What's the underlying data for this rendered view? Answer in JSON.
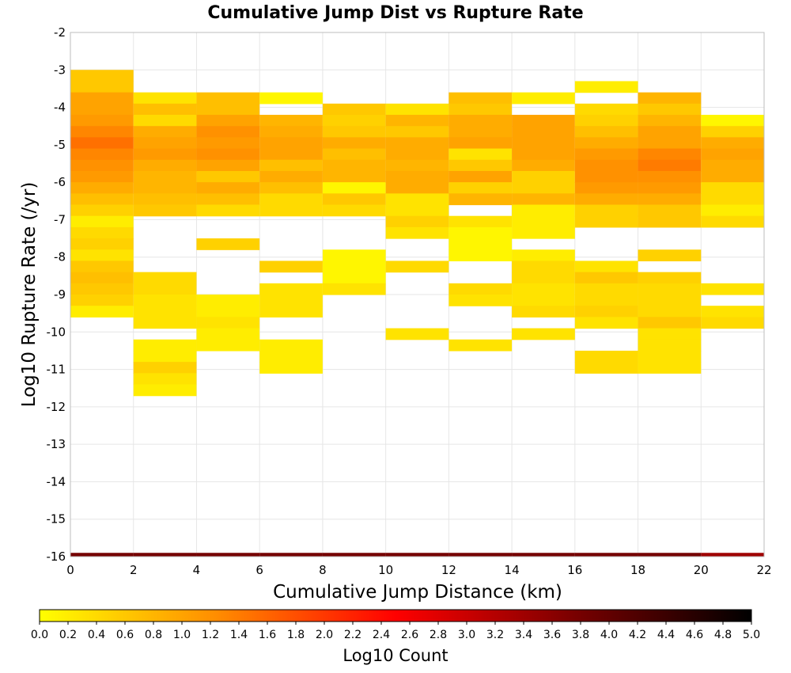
{
  "chart_data": {
    "type": "heatmap",
    "title": "Cumulative Jump Dist vs Rupture Rate",
    "xlabel": "Cumulative Jump Distance (km)",
    "ylabel": "Log10 Rupture Rate (/yr)",
    "xlim": [
      0,
      22
    ],
    "ylim": [
      -16,
      -2
    ],
    "x_ticks": [
      "0",
      "2",
      "4",
      "6",
      "8",
      "10",
      "12",
      "14",
      "16",
      "18",
      "20",
      "22"
    ],
    "y_ticks": [
      "-2",
      "-3",
      "-4",
      "-5",
      "-6",
      "-7",
      "-8",
      "-9",
      "-10",
      "-11",
      "-12",
      "-13",
      "-14",
      "-15",
      "-16"
    ],
    "x_bin_width": 2,
    "y_bin_height": 0.3,
    "grid": true,
    "colorbar": {
      "title": "Log10 Count",
      "range": [
        0.0,
        5.0
      ],
      "ticks": [
        "0.0",
        "0.2",
        "0.4",
        "0.6",
        "0.8",
        "1.0",
        "1.2",
        "1.4",
        "1.6",
        "1.8",
        "2.0",
        "2.2",
        "2.4",
        "2.6",
        "2.8",
        "3.0",
        "3.2",
        "3.4",
        "3.6",
        "3.8",
        "4.0",
        "4.2",
        "4.4",
        "4.6",
        "4.8",
        "5.0"
      ],
      "colors": [
        "#ffff00",
        "#ff8c00",
        "#ff0000",
        "#7a0000",
        "#000000"
      ]
    },
    "columns": [
      {
        "x0": 0,
        "cells": [
          {
            "y": -3.0,
            "v": 0.6
          },
          {
            "y": -3.3,
            "v": 0.6
          },
          {
            "y": -3.6,
            "v": 1.0
          },
          {
            "y": -3.9,
            "v": 1.0
          },
          {
            "y": -4.2,
            "v": 1.1
          },
          {
            "y": -4.5,
            "v": 1.3
          },
          {
            "y": -4.8,
            "v": 1.5
          },
          {
            "y": -5.1,
            "v": 1.3
          },
          {
            "y": -5.4,
            "v": 1.2
          },
          {
            "y": -5.7,
            "v": 1.1
          },
          {
            "y": -6.0,
            "v": 0.9
          },
          {
            "y": -6.3,
            "v": 0.7
          },
          {
            "y": -6.6,
            "v": 0.5
          },
          {
            "y": -6.9,
            "v": 0.2
          },
          {
            "y": -7.2,
            "v": 0.4
          },
          {
            "y": -7.5,
            "v": 0.5
          },
          {
            "y": -7.8,
            "v": 0.3
          },
          {
            "y": -8.1,
            "v": 0.6
          },
          {
            "y": -8.4,
            "v": 0.7
          },
          {
            "y": -8.7,
            "v": 0.6
          },
          {
            "y": -9.0,
            "v": 0.5
          },
          {
            "y": -9.3,
            "v": 0.2
          }
        ]
      },
      {
        "x0": 2,
        "cells": [
          {
            "y": -3.6,
            "v": 0.3
          },
          {
            "y": -3.9,
            "v": 0.7
          },
          {
            "y": -4.2,
            "v": 0.4
          },
          {
            "y": -4.5,
            "v": 0.9
          },
          {
            "y": -4.8,
            "v": 1.0
          },
          {
            "y": -5.1,
            "v": 1.1
          },
          {
            "y": -5.4,
            "v": 0.9
          },
          {
            "y": -5.7,
            "v": 0.8
          },
          {
            "y": -6.0,
            "v": 0.8
          },
          {
            "y": -6.3,
            "v": 0.7
          },
          {
            "y": -6.6,
            "v": 0.6
          },
          {
            "y": -8.4,
            "v": 0.4
          },
          {
            "y": -8.7,
            "v": 0.4
          },
          {
            "y": -9.0,
            "v": 0.3
          },
          {
            "y": -9.3,
            "v": 0.3
          },
          {
            "y": -9.6,
            "v": 0.3
          },
          {
            "y": -10.2,
            "v": 0.2
          },
          {
            "y": -10.5,
            "v": 0.2
          },
          {
            "y": -10.8,
            "v": 0.5
          },
          {
            "y": -11.1,
            "v": 0.3
          },
          {
            "y": -11.4,
            "v": 0.2
          }
        ]
      },
      {
        "x0": 4,
        "cells": [
          {
            "y": -3.6,
            "v": 0.7
          },
          {
            "y": -3.9,
            "v": 0.7
          },
          {
            "y": -4.2,
            "v": 1.0
          },
          {
            "y": -4.5,
            "v": 1.2
          },
          {
            "y": -4.8,
            "v": 1.1
          },
          {
            "y": -5.1,
            "v": 1.2
          },
          {
            "y": -5.4,
            "v": 1.0
          },
          {
            "y": -5.7,
            "v": 0.6
          },
          {
            "y": -6.0,
            "v": 0.9
          },
          {
            "y": -6.3,
            "v": 0.7
          },
          {
            "y": -6.6,
            "v": 0.4
          },
          {
            "y": -7.5,
            "v": 0.5
          },
          {
            "y": -9.0,
            "v": 0.2
          },
          {
            "y": -9.3,
            "v": 0.2
          },
          {
            "y": -9.6,
            "v": 0.3
          },
          {
            "y": -9.9,
            "v": 0.2
          },
          {
            "y": -10.2,
            "v": 0.2
          }
        ]
      },
      {
        "x0": 6,
        "cells": [
          {
            "y": -3.6,
            "v": 0.1
          },
          {
            "y": -4.2,
            "v": 0.8
          },
          {
            "y": -4.5,
            "v": 0.9
          },
          {
            "y": -4.8,
            "v": 1.0
          },
          {
            "y": -5.1,
            "v": 1.0
          },
          {
            "y": -5.4,
            "v": 0.7
          },
          {
            "y": -5.7,
            "v": 0.9
          },
          {
            "y": -6.0,
            "v": 0.7
          },
          {
            "y": -6.3,
            "v": 0.4
          },
          {
            "y": -6.6,
            "v": 0.4
          },
          {
            "y": -8.1,
            "v": 0.5
          },
          {
            "y": -8.7,
            "v": 0.3
          },
          {
            "y": -9.0,
            "v": 0.3
          },
          {
            "y": -9.3,
            "v": 0.3
          },
          {
            "y": -10.2,
            "v": 0.2
          },
          {
            "y": -10.5,
            "v": 0.2
          },
          {
            "y": -10.8,
            "v": 0.2
          }
        ]
      },
      {
        "x0": 8,
        "cells": [
          {
            "y": -3.9,
            "v": 0.6
          },
          {
            "y": -4.2,
            "v": 0.5
          },
          {
            "y": -4.5,
            "v": 0.6
          },
          {
            "y": -4.8,
            "v": 0.9
          },
          {
            "y": -5.1,
            "v": 0.7
          },
          {
            "y": -5.4,
            "v": 0.8
          },
          {
            "y": -5.7,
            "v": 0.8
          },
          {
            "y": -6.0,
            "v": 0.1
          },
          {
            "y": -6.3,
            "v": 0.6
          },
          {
            "y": -6.6,
            "v": 0.4
          },
          {
            "y": -7.8,
            "v": 0.1
          },
          {
            "y": -8.1,
            "v": 0.1
          },
          {
            "y": -8.4,
            "v": 0.1
          },
          {
            "y": -8.7,
            "v": 0.3
          }
        ]
      },
      {
        "x0": 10,
        "cells": [
          {
            "y": -3.9,
            "v": 0.3
          },
          {
            "y": -4.2,
            "v": 0.8
          },
          {
            "y": -4.5,
            "v": 0.6
          },
          {
            "y": -4.8,
            "v": 0.9
          },
          {
            "y": -5.1,
            "v": 0.9
          },
          {
            "y": -5.4,
            "v": 0.8
          },
          {
            "y": -5.7,
            "v": 0.9
          },
          {
            "y": -6.0,
            "v": 0.9
          },
          {
            "y": -6.3,
            "v": 0.3
          },
          {
            "y": -6.6,
            "v": 0.3
          },
          {
            "y": -6.9,
            "v": 0.5
          },
          {
            "y": -7.2,
            "v": 0.3
          },
          {
            "y": -8.1,
            "v": 0.4
          },
          {
            "y": -9.9,
            "v": 0.3
          }
        ]
      },
      {
        "x0": 12,
        "cells": [
          {
            "y": -3.6,
            "v": 0.7
          },
          {
            "y": -3.9,
            "v": 0.6
          },
          {
            "y": -4.2,
            "v": 0.9
          },
          {
            "y": -4.5,
            "v": 0.9
          },
          {
            "y": -4.8,
            "v": 1.0
          },
          {
            "y": -5.1,
            "v": 0.3
          },
          {
            "y": -5.4,
            "v": 0.6
          },
          {
            "y": -5.7,
            "v": 1.0
          },
          {
            "y": -6.0,
            "v": 0.5
          },
          {
            "y": -6.3,
            "v": 0.8
          },
          {
            "y": -6.9,
            "v": 0.3
          },
          {
            "y": -7.2,
            "v": 0.1
          },
          {
            "y": -7.5,
            "v": 0.1
          },
          {
            "y": -7.8,
            "v": 0.1
          },
          {
            "y": -8.7,
            "v": 0.4
          },
          {
            "y": -9.0,
            "v": 0.3
          },
          {
            "y": -10.2,
            "v": 0.3
          }
        ]
      },
      {
        "x0": 14,
        "cells": [
          {
            "y": -3.6,
            "v": 0.2
          },
          {
            "y": -4.2,
            "v": 1.0
          },
          {
            "y": -4.5,
            "v": 1.0
          },
          {
            "y": -4.8,
            "v": 1.0
          },
          {
            "y": -5.1,
            "v": 1.0
          },
          {
            "y": -5.4,
            "v": 0.9
          },
          {
            "y": -5.7,
            "v": 0.5
          },
          {
            "y": -6.0,
            "v": 0.5
          },
          {
            "y": -6.3,
            "v": 0.8
          },
          {
            "y": -6.6,
            "v": 0.2
          },
          {
            "y": -6.9,
            "v": 0.2
          },
          {
            "y": -7.2,
            "v": 0.2
          },
          {
            "y": -7.8,
            "v": 0.2
          },
          {
            "y": -8.1,
            "v": 0.4
          },
          {
            "y": -8.4,
            "v": 0.4
          },
          {
            "y": -8.7,
            "v": 0.3
          },
          {
            "y": -9.0,
            "v": 0.3
          },
          {
            "y": -9.3,
            "v": 0.4
          },
          {
            "y": -9.9,
            "v": 0.3
          }
        ]
      },
      {
        "x0": 16,
        "cells": [
          {
            "y": -3.3,
            "v": 0.2
          },
          {
            "y": -3.9,
            "v": 0.4
          },
          {
            "y": -4.2,
            "v": 0.5
          },
          {
            "y": -4.5,
            "v": 0.7
          },
          {
            "y": -4.8,
            "v": 0.9
          },
          {
            "y": -5.1,
            "v": 1.1
          },
          {
            "y": -5.4,
            "v": 1.2
          },
          {
            "y": -5.7,
            "v": 1.2
          },
          {
            "y": -6.0,
            "v": 1.1
          },
          {
            "y": -6.3,
            "v": 0.9
          },
          {
            "y": -6.6,
            "v": 0.5
          },
          {
            "y": -6.9,
            "v": 0.5
          },
          {
            "y": -8.1,
            "v": 0.3
          },
          {
            "y": -8.4,
            "v": 0.6
          },
          {
            "y": -8.7,
            "v": 0.4
          },
          {
            "y": -9.0,
            "v": 0.4
          },
          {
            "y": -9.3,
            "v": 0.5
          },
          {
            "y": -9.6,
            "v": 0.3
          },
          {
            "y": -10.5,
            "v": 0.4
          },
          {
            "y": -10.8,
            "v": 0.4
          }
        ]
      },
      {
        "x0": 18,
        "cells": [
          {
            "y": -3.6,
            "v": 0.8
          },
          {
            "y": -3.9,
            "v": 0.6
          },
          {
            "y": -4.2,
            "v": 0.8
          },
          {
            "y": -4.5,
            "v": 1.0
          },
          {
            "y": -4.8,
            "v": 1.0
          },
          {
            "y": -5.1,
            "v": 1.3
          },
          {
            "y": -5.4,
            "v": 1.4
          },
          {
            "y": -5.7,
            "v": 1.2
          },
          {
            "y": -6.0,
            "v": 1.1
          },
          {
            "y": -6.3,
            "v": 0.9
          },
          {
            "y": -6.6,
            "v": 0.6
          },
          {
            "y": -6.9,
            "v": 0.6
          },
          {
            "y": -7.8,
            "v": 0.5
          },
          {
            "y": -8.4,
            "v": 0.5
          },
          {
            "y": -8.7,
            "v": 0.4
          },
          {
            "y": -9.0,
            "v": 0.4
          },
          {
            "y": -9.3,
            "v": 0.4
          },
          {
            "y": -9.6,
            "v": 0.6
          },
          {
            "y": -9.9,
            "v": 0.3
          },
          {
            "y": -10.2,
            "v": 0.3
          },
          {
            "y": -10.5,
            "v": 0.3
          },
          {
            "y": -10.8,
            "v": 0.3
          }
        ]
      },
      {
        "x0": 20,
        "cells": [
          {
            "y": -4.2,
            "v": 0.1
          },
          {
            "y": -4.5,
            "v": 0.5
          },
          {
            "y": -4.8,
            "v": 0.9
          },
          {
            "y": -5.1,
            "v": 1.0
          },
          {
            "y": -5.4,
            "v": 0.9
          },
          {
            "y": -5.7,
            "v": 0.9
          },
          {
            "y": -6.0,
            "v": 0.4
          },
          {
            "y": -6.3,
            "v": 0.4
          },
          {
            "y": -6.6,
            "v": 0.2
          },
          {
            "y": -6.9,
            "v": 0.4
          },
          {
            "y": -8.7,
            "v": 0.3
          },
          {
            "y": -9.3,
            "v": 0.3
          },
          {
            "y": -9.6,
            "v": 0.4
          }
        ]
      }
    ],
    "bottom_row": {
      "y": -15.9,
      "values": [
        3.8,
        3.8,
        3.8,
        3.8,
        3.8,
        3.8,
        3.8,
        3.8,
        3.8,
        3.8,
        3.4
      ]
    }
  }
}
